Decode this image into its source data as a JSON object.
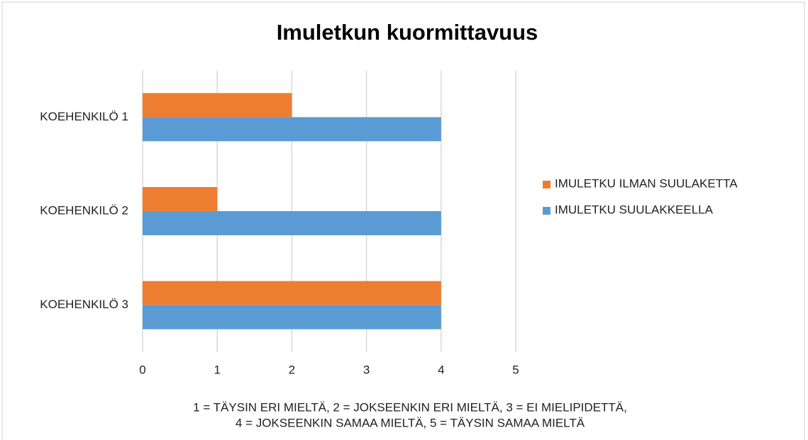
{
  "chart_data": {
    "type": "barh",
    "title": "Imuletkun kuormittavuus",
    "categories": [
      "KOEHENKILÖ 1",
      "KOEHENKILÖ 2",
      "KOEHENKILÖ 3"
    ],
    "series": [
      {
        "name": "IMULETKU ILMAN SUULAKETTA",
        "color": "#ed7d31",
        "values": [
          2,
          1,
          4
        ]
      },
      {
        "name": "IMULETKU SUULAKKEELLA",
        "color": "#5b9bd5",
        "values": [
          4,
          4,
          4
        ]
      }
    ],
    "xlim": [
      0,
      5
    ],
    "xticks": [
      0,
      1,
      2,
      3,
      4,
      5
    ],
    "grid": true,
    "legend": "right",
    "annotation": [
      "1 = TÄYSIN ERI MIELTÄ, 2 = JOKSEENKIN ERI MIELTÄ, 3 = EI MIELIPIDETTÄ,",
      "4 = JOKSEENKIN SAMAA MIELTÄ, 5 = TÄYSIN SAMAA MIELTÄ"
    ]
  }
}
